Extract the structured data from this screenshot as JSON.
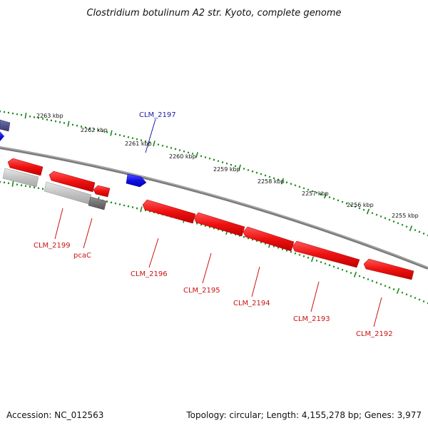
{
  "title": "Clostridium botulinum A2 str. Kyoto, complete genome",
  "accession": "Accession: NC_012563",
  "summary": "Topology: circular; Length: 4,155,278 bp; Genes: 3,977",
  "colors": {
    "forward_gene": "#1010e6",
    "reverse_gene": "#ee1111",
    "grey_gene": "#bdbdbd",
    "dark_grey_gene": "#6e6e6e",
    "purple_gene": "#505090",
    "backbone": "#7a7a7a",
    "ticks": "#1a8a1a",
    "label_forward": "#1a1aa8",
    "label_reverse": "#cc1111"
  },
  "kbp_labels": [
    "2263 kbp",
    "2262 kbp",
    "2261 kbp",
    "2260 kbp",
    "2259 kbp",
    "2258 kbp",
    "2257 kbp",
    "2256 kbp",
    "2255 kbp"
  ],
  "gene_labels": [
    {
      "id": "CLM_2197",
      "strand": "forward"
    },
    {
      "id": "CLM_2199",
      "strand": "reverse"
    },
    {
      "id": "pcaC",
      "strand": "reverse"
    },
    {
      "id": "CLM_2196",
      "strand": "reverse"
    },
    {
      "id": "CLM_2195",
      "strand": "reverse"
    },
    {
      "id": "CLM_2194",
      "strand": "reverse"
    },
    {
      "id": "CLM_2193",
      "strand": "reverse"
    },
    {
      "id": "CLM_2192",
      "strand": "reverse"
    }
  ]
}
